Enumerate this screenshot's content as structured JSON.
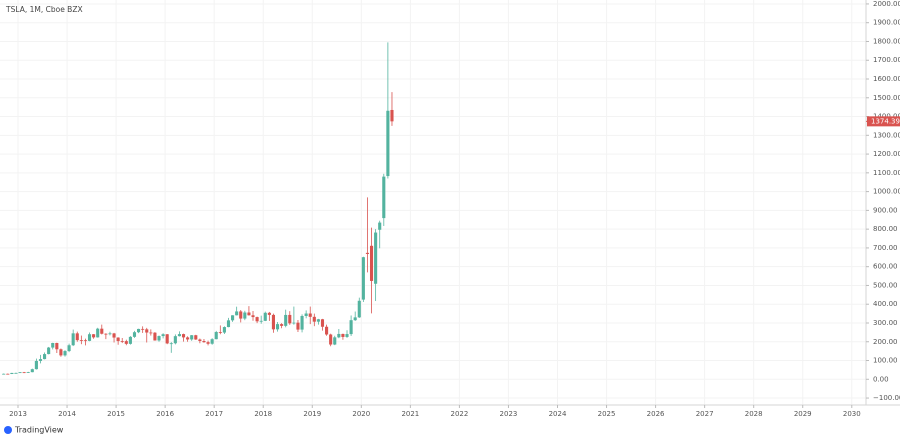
{
  "chart_data": {
    "type": "candlestick",
    "title": "TSLA, 1M, Cboe BZX",
    "x": [
      "2012-09",
      "2012-10",
      "2012-11",
      "2012-12",
      "2013-01",
      "2013-02",
      "2013-03",
      "2013-04",
      "2013-05",
      "2013-06",
      "2013-07",
      "2013-08",
      "2013-09",
      "2013-10",
      "2013-11",
      "2013-12",
      "2014-01",
      "2014-02",
      "2014-03",
      "2014-04",
      "2014-05",
      "2014-06",
      "2014-07",
      "2014-08",
      "2014-09",
      "2014-10",
      "2014-11",
      "2014-12",
      "2015-01",
      "2015-02",
      "2015-03",
      "2015-04",
      "2015-05",
      "2015-06",
      "2015-07",
      "2015-08",
      "2015-09",
      "2015-10",
      "2015-11",
      "2015-12",
      "2016-01",
      "2016-02",
      "2016-03",
      "2016-04",
      "2016-05",
      "2016-06",
      "2016-07",
      "2016-08",
      "2016-09",
      "2016-10",
      "2016-11",
      "2016-12",
      "2017-01",
      "2017-02",
      "2017-03",
      "2017-04",
      "2017-05",
      "2017-06",
      "2017-07",
      "2017-08",
      "2017-09",
      "2017-10",
      "2017-11",
      "2017-12",
      "2018-01",
      "2018-02",
      "2018-03",
      "2018-04",
      "2018-05",
      "2018-06",
      "2018-07",
      "2018-08",
      "2018-09",
      "2018-10",
      "2018-11",
      "2018-12",
      "2019-01",
      "2019-02",
      "2019-03",
      "2019-04",
      "2019-05",
      "2019-06",
      "2019-07",
      "2019-08",
      "2019-09",
      "2019-10",
      "2019-11",
      "2019-12",
      "2020-01",
      "2020-02",
      "2020-03",
      "2020-04",
      "2020-05",
      "2020-06",
      "2020-07",
      "2020-08"
    ],
    "open": [
      28.0,
      29.3,
      28.4,
      33.8,
      33.9,
      37.5,
      35.0,
      37.9,
      53.9,
      97.8,
      107.6,
      134.3,
      169.0,
      193.4,
      159.9,
      127.3,
      150.4,
      181.4,
      244.8,
      208.5,
      207.9,
      204.7,
      240.1,
      223.3,
      269.7,
      242.7,
      241.7,
      244.5,
      222.4,
      203.6,
      203.3,
      188.8,
      226.1,
      250.8,
      268.3,
      266.2,
      249.1,
      248.4,
      206.9,
      230.3,
      240.0,
      191.2,
      191.9,
      229.8,
      240.8,
      223.2,
      212.3,
      234.8,
      212.0,
      204.0,
      197.7,
      189.4,
      213.7,
      251.9,
      249.0,
      278.3,
      314.1,
      341.0,
      361.6,
      323.5,
      355.9,
      341.1,
      331.5,
      308.9,
      311.4,
      354.3,
      343.1,
      266.1,
      293.9,
      284.7,
      342.9,
      298.1,
      301.7,
      264.8,
      337.3,
      350.5,
      332.8,
      307.0,
      319.9,
      279.9,
      238.7,
      185.2,
      223.5,
      241.6,
      225.6,
      240.9,
      314.9,
      329.9,
      424.5,
      673.7,
      711.3,
      509.0,
      796.6,
      858.9,
      1083.0,
      1435.0
    ],
    "high": [
      30.9,
      30.6,
      34.5,
      35.2,
      39.0,
      39.3,
      39.8,
      56.7,
      110.3,
      129.9,
      143.0,
      172.4,
      194.5,
      194.9,
      164.0,
      155.5,
      190.3,
      265.0,
      254.0,
      233.0,
      216.7,
      249.5,
      241.0,
      274.4,
      291.4,
      245.2,
      253.0,
      247.0,
      224.0,
      220.0,
      211.0,
      230.0,
      258.0,
      269.0,
      282.0,
      274.0,
      266.0,
      251.0,
      233.0,
      245.0,
      241.0,
      198.0,
      239.0,
      255.0,
      243.0,
      229.0,
      236.0,
      237.0,
      217.0,
      215.0,
      206.0,
      219.0,
      258.0,
      287.0,
      282.0,
      327.0,
      341.5,
      386.9,
      369.0,
      365.0,
      389.6,
      364.0,
      334.0,
      339.0,
      360.5,
      359.0,
      350.0,
      305.0,
      299.0,
      371.0,
      363.0,
      387.5,
      316.0,
      346.0,
      367.0,
      387.5,
      350.0,
      322.0,
      322.0,
      291.0,
      243.0,
      232.0,
      268.0,
      243.0,
      261.0,
      340.0,
      361.0,
      435.0,
      653.0,
      969.0,
      808.0,
      800.0,
      845.0,
      1095.0,
      1795.0,
      1530.0
    ],
    "low": [
      26.5,
      26.6,
      27.8,
      32.5,
      33.8,
      33.0,
      34.0,
      37.5,
      52.0,
      85.0,
      106.0,
      133.0,
      159.0,
      140.0,
      120.0,
      121.0,
      145.0,
      177.0,
      200.0,
      187.0,
      181.0,
      203.0,
      216.0,
      222.0,
      239.0,
      214.0,
      234.0,
      196.0,
      184.0,
      193.0,
      181.4,
      185.0,
      221.0,
      246.0,
      247.0,
      196.0,
      233.0,
      206.0,
      200.0,
      218.0,
      187.0,
      141.0,
      186.0,
      228.0,
      201.0,
      200.0,
      205.0,
      210.0,
      192.0,
      195.0,
      181.0,
      184.0,
      213.0,
      240.0,
      241.0,
      277.0,
      306.0,
      340.0,
      303.0,
      315.0,
      339.0,
      312.0,
      299.0,
      296.0,
      310.0,
      311.0,
      248.0,
      254.0,
      272.0,
      277.0,
      290.0,
      291.0,
      252.0,
      250.0,
      325.0,
      294.0,
      283.0,
      291.0,
      259.0,
      232.0,
      176.0,
      182.0,
      219.0,
      211.0,
      221.0,
      231.0,
      311.0,
      327.0,
      412.0,
      570.0,
      351.0,
      417.0,
      698.0,
      817.0,
      1070.0,
      1350.0
    ],
    "close": [
      29.3,
      28.4,
      33.8,
      33.9,
      37.5,
      35.0,
      37.9,
      53.9,
      97.8,
      107.6,
      134.3,
      169.0,
      193.4,
      159.9,
      127.3,
      150.4,
      181.4,
      244.8,
      208.5,
      207.9,
      204.7,
      240.1,
      223.3,
      269.7,
      242.7,
      241.7,
      244.5,
      222.4,
      203.6,
      203.3,
      188.8,
      226.1,
      250.8,
      268.3,
      266.2,
      249.1,
      248.4,
      206.9,
      230.3,
      240.0,
      191.2,
      191.9,
      229.8,
      240.8,
      223.2,
      212.3,
      234.8,
      212.0,
      204.0,
      197.7,
      189.4,
      213.7,
      251.9,
      249.0,
      278.3,
      314.1,
      341.0,
      361.6,
      323.5,
      355.9,
      341.1,
      331.5,
      308.9,
      311.4,
      354.3,
      343.1,
      266.1,
      293.9,
      284.7,
      342.9,
      298.1,
      301.7,
      264.8,
      337.3,
      350.5,
      332.8,
      307.0,
      319.9,
      279.9,
      238.7,
      185.2,
      223.5,
      241.6,
      225.6,
      240.9,
      314.9,
      329.9,
      418.3,
      650.6,
      667.9,
      524.0,
      781.9,
      835.0,
      1079.8,
      1430.8,
      1374.39
    ],
    "up_color": "#53b39f",
    "down_color": "#d9534f",
    "last_price": 1374.39,
    "xlim": [
      2012.633,
      2030.29
    ],
    "xticks": [
      2013,
      2014,
      2015,
      2016,
      2017,
      2018,
      2019,
      2020,
      2021,
      2022,
      2023,
      2024,
      2025,
      2026,
      2027,
      2028,
      2029,
      2030
    ],
    "ylim": [
      -137,
      2021
    ],
    "yticks": [
      {
        "value": -100,
        "label": "−100.00"
      },
      {
        "value": 0,
        "label": "0.00"
      },
      {
        "value": 100,
        "label": "100.00"
      },
      {
        "value": 200,
        "label": "200.00"
      },
      {
        "value": 300,
        "label": "300.00"
      },
      {
        "value": 400,
        "label": "400.00"
      },
      {
        "value": 500,
        "label": "500.00"
      },
      {
        "value": 600,
        "label": "600.00"
      },
      {
        "value": 700,
        "label": "700.00"
      },
      {
        "value": 800,
        "label": "800.00"
      },
      {
        "value": 900,
        "label": "900.00"
      },
      {
        "value": 1000,
        "label": "1000.00"
      },
      {
        "value": 1100,
        "label": "1100.00"
      },
      {
        "value": 1200,
        "label": "1200.00"
      },
      {
        "value": 1300,
        "label": "1300.00"
      },
      {
        "value": 1400,
        "label": "1400.00"
      },
      {
        "value": 1500,
        "label": "1500.00"
      },
      {
        "value": 1600,
        "label": "1600.00"
      },
      {
        "value": 1700,
        "label": "1700.00"
      },
      {
        "value": 1800,
        "label": "1800.00"
      },
      {
        "value": 1900,
        "label": "1900.00"
      },
      {
        "value": 2000,
        "label": "2000.00"
      }
    ],
    "grid": true
  },
  "branding": "TradingView"
}
